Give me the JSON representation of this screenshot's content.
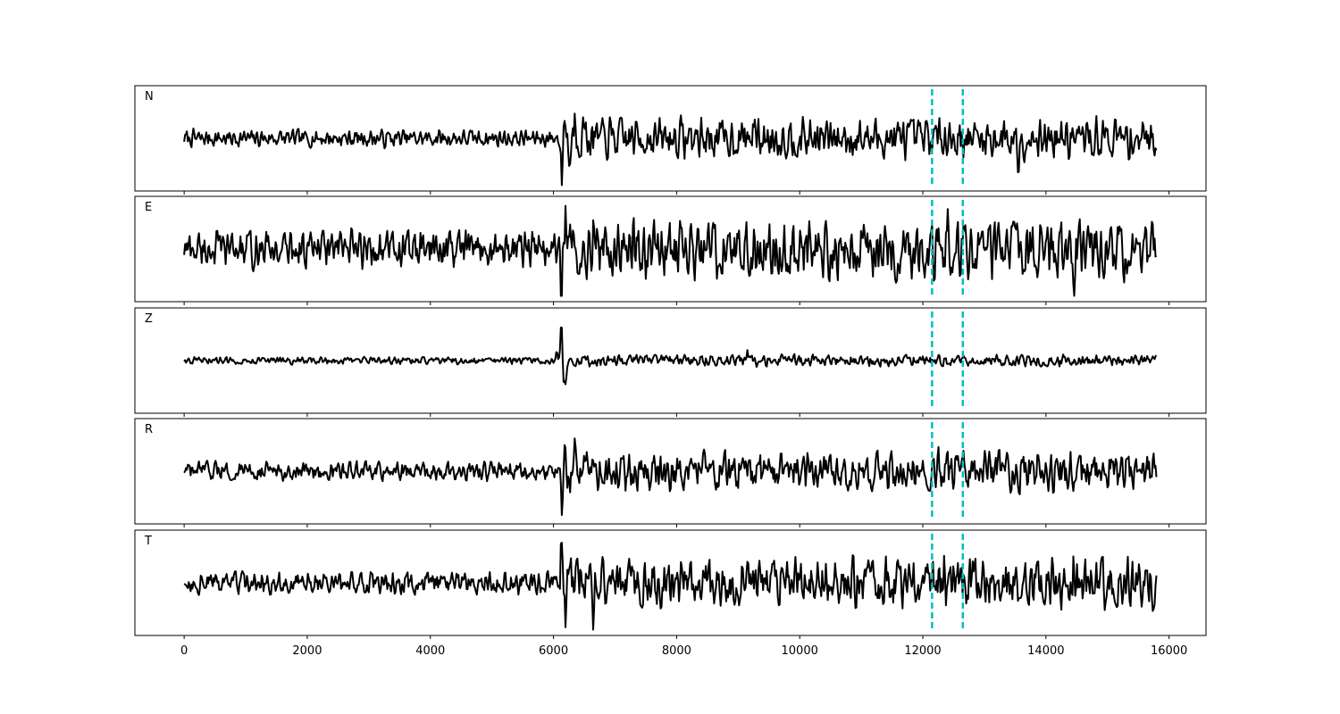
{
  "chart_data": {
    "type": "line",
    "title": "",
    "xlabel": "",
    "ylabel": "",
    "xlim": [
      -800,
      16600
    ],
    "x_ticks": [
      0,
      2000,
      4000,
      6000,
      8000,
      10000,
      12000,
      14000,
      16000
    ],
    "x_tick_labels": [
      "0",
      "2000",
      "4000",
      "6000",
      "8000",
      "10000",
      "12000",
      "14000",
      "16000"
    ],
    "shared_x": true,
    "grid": false,
    "n_samples": 15800,
    "vertical_markers": [
      12150,
      12650
    ],
    "marker_color": "#00bfbf",
    "trace_color": "#000000",
    "event_onset": 6100,
    "panels": [
      {
        "component": "N",
        "noise": 0.12,
        "coda": 0.28,
        "peaks": [
          [
            6140,
            -1.0
          ],
          [
            6180,
            0.68
          ],
          [
            6260,
            -0.56
          ],
          [
            6350,
            0.52
          ],
          [
            6500,
            0.3
          ],
          [
            9250,
            0.34
          ],
          [
            12350,
            0.28
          ],
          [
            13550,
            -0.48
          ],
          [
            13850,
            0.3
          ]
        ]
      },
      {
        "component": "E",
        "noise": 0.26,
        "coda": 0.4,
        "peaks": [
          [
            6120,
            -0.88
          ],
          [
            6200,
            0.78
          ],
          [
            6650,
            0.88
          ],
          [
            6900,
            -0.5
          ],
          [
            7300,
            0.52
          ],
          [
            9200,
            -0.45
          ],
          [
            12400,
            0.78
          ],
          [
            12450,
            -0.76
          ],
          [
            14450,
            -0.72
          ],
          [
            15450,
            0.52
          ]
        ]
      },
      {
        "component": "Z",
        "noise": 0.05,
        "coda": 0.08,
        "peaks": [
          [
            6130,
            1.0
          ],
          [
            6160,
            -0.55
          ],
          [
            6200,
            -0.45
          ],
          [
            6050,
            0.2
          ],
          [
            9150,
            0.22
          ],
          [
            9300,
            -0.18
          ]
        ]
      },
      {
        "component": "R",
        "noise": 0.13,
        "coda": 0.28,
        "peaks": [
          [
            6140,
            -1.0
          ],
          [
            6180,
            0.68
          ],
          [
            6260,
            -0.55
          ],
          [
            6350,
            0.5
          ],
          [
            6550,
            0.4
          ],
          [
            8900,
            0.34
          ],
          [
            13550,
            -0.48
          ],
          [
            13850,
            0.3
          ]
        ]
      },
      {
        "component": "T",
        "noise": 0.16,
        "coda": 0.34,
        "peaks": [
          [
            6130,
            0.8
          ],
          [
            6200,
            -0.7
          ],
          [
            6460,
            0.36
          ],
          [
            6650,
            -0.72
          ],
          [
            8650,
            0.4
          ],
          [
            12350,
            0.72
          ],
          [
            12380,
            -0.58
          ],
          [
            13650,
            0.42
          ],
          [
            14450,
            0.48
          ],
          [
            15250,
            -0.36
          ]
        ]
      }
    ]
  }
}
